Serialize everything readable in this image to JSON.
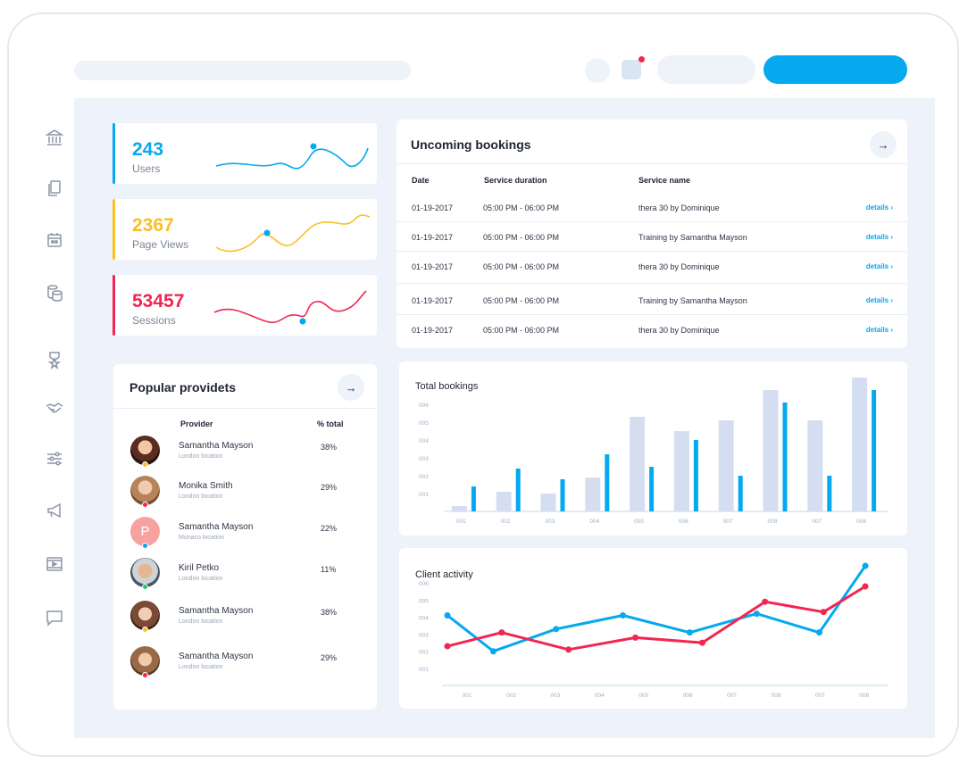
{
  "topbar": {
    "search_placeholder": "",
    "notification_count": ""
  },
  "sidebar": {
    "items": [
      "bank-icon",
      "documents-icon",
      "calendar-icon",
      "coins-icon",
      "award-icon",
      "handshake-icon",
      "sliders-icon",
      "megaphone-icon",
      "video-icon",
      "chat-icon"
    ]
  },
  "stats": [
    {
      "value": "243",
      "label": "Users",
      "color": "#04a9ef"
    },
    {
      "value": "2367",
      "label": "Page Views",
      "color": "#fbbf24"
    },
    {
      "value": "53457",
      "label": "Sessions",
      "color": "#f2264f"
    }
  ],
  "bookings": {
    "title": "Uncoming bookings",
    "headers": [
      "Date",
      "Service duration",
      "Service name"
    ],
    "rows": [
      {
        "date": "01-19-2017",
        "duration": "05:00 PM - 06:00 PM",
        "service": "thera 30 by Dominique",
        "action": "details ›"
      },
      {
        "date": "01-19-2017",
        "duration": "05:00 PM - 06:00 PM",
        "service": "Training by Samantha Mayson",
        "action": "details ›"
      },
      {
        "date": "01-19-2017",
        "duration": "05:00 PM - 06:00 PM",
        "service": "thera 30 by Dominique",
        "action": "details ›"
      },
      {
        "date": "01-19-2017",
        "duration": "05:00 PM - 06:00 PM",
        "service": "Training by Samantha Mayson",
        "action": "details ›"
      },
      {
        "date": "01-19-2017",
        "duration": "05:00 PM - 06:00 PM",
        "service": "thera 30 by Dominique",
        "action": "details ›"
      }
    ]
  },
  "providers": {
    "title": "Popular providets",
    "headers": [
      "Provider",
      "% total"
    ],
    "rows": [
      {
        "name": "Samantha Mayson",
        "location": "London location",
        "pct": "38%",
        "status_color": "#fbbf24",
        "initial": ""
      },
      {
        "name": "Monika Smith",
        "location": "London location",
        "pct": "29%",
        "status_color": "#f2264f",
        "initial": ""
      },
      {
        "name": "Samantha Mayson",
        "location": "Monaco location",
        "pct": "22%",
        "status_color": "#04a9ef",
        "initial": "P"
      },
      {
        "name": "Kiril Petko",
        "location": "London location",
        "pct": "11%",
        "status_color": "#22c55e",
        "initial": ""
      },
      {
        "name": "Samantha Mayson",
        "location": "London location",
        "pct": "38%",
        "status_color": "#fbbf24",
        "initial": ""
      },
      {
        "name": "Samantha Mayson",
        "location": "London location",
        "pct": "29%",
        "status_color": "#f2264f",
        "initial": ""
      }
    ]
  },
  "chart_data": [
    {
      "type": "bar",
      "title": "Total bookings",
      "categories": [
        "001",
        "002",
        "003",
        "004",
        "005",
        "006",
        "007",
        "008",
        "007",
        "008"
      ],
      "yticks": [
        "001",
        "002",
        "003",
        "004",
        "005",
        "006"
      ],
      "ylim": [
        0,
        7
      ],
      "series": [
        {
          "name": "grey",
          "color": "#d5def0",
          "values": [
            0.3,
            1.1,
            1.0,
            1.9,
            5.3,
            4.5,
            5.1,
            6.8,
            5.1,
            7.5
          ]
        },
        {
          "name": "blue",
          "color": "#04a9ef",
          "values": [
            1.4,
            2.4,
            1.8,
            3.2,
            2.5,
            4.0,
            2.0,
            6.1,
            2.0,
            6.8
          ]
        }
      ]
    },
    {
      "type": "line",
      "title": "Client activity",
      "categories": [
        "001",
        "002",
        "003",
        "004",
        "005",
        "006",
        "007",
        "008",
        "007",
        "008"
      ],
      "yticks": [
        "001",
        "002",
        "003",
        "004",
        "005",
        "006"
      ],
      "ylim": [
        0,
        7
      ],
      "series": [
        {
          "name": "blue",
          "color": "#04a9ef",
          "x": [
            0,
            1.1,
            2.6,
            4.2,
            5.8,
            7.4,
            8.9,
            10
          ],
          "values": [
            4.1,
            2.0,
            3.3,
            4.1,
            3.1,
            4.2,
            3.1,
            7.0
          ]
        },
        {
          "name": "red",
          "color": "#f2264f",
          "x": [
            0,
            1.3,
            2.9,
            4.5,
            6.1,
            7.6,
            9.0,
            10
          ],
          "values": [
            2.3,
            3.1,
            2.1,
            2.8,
            2.5,
            4.9,
            4.3,
            5.8
          ]
        }
      ]
    }
  ]
}
